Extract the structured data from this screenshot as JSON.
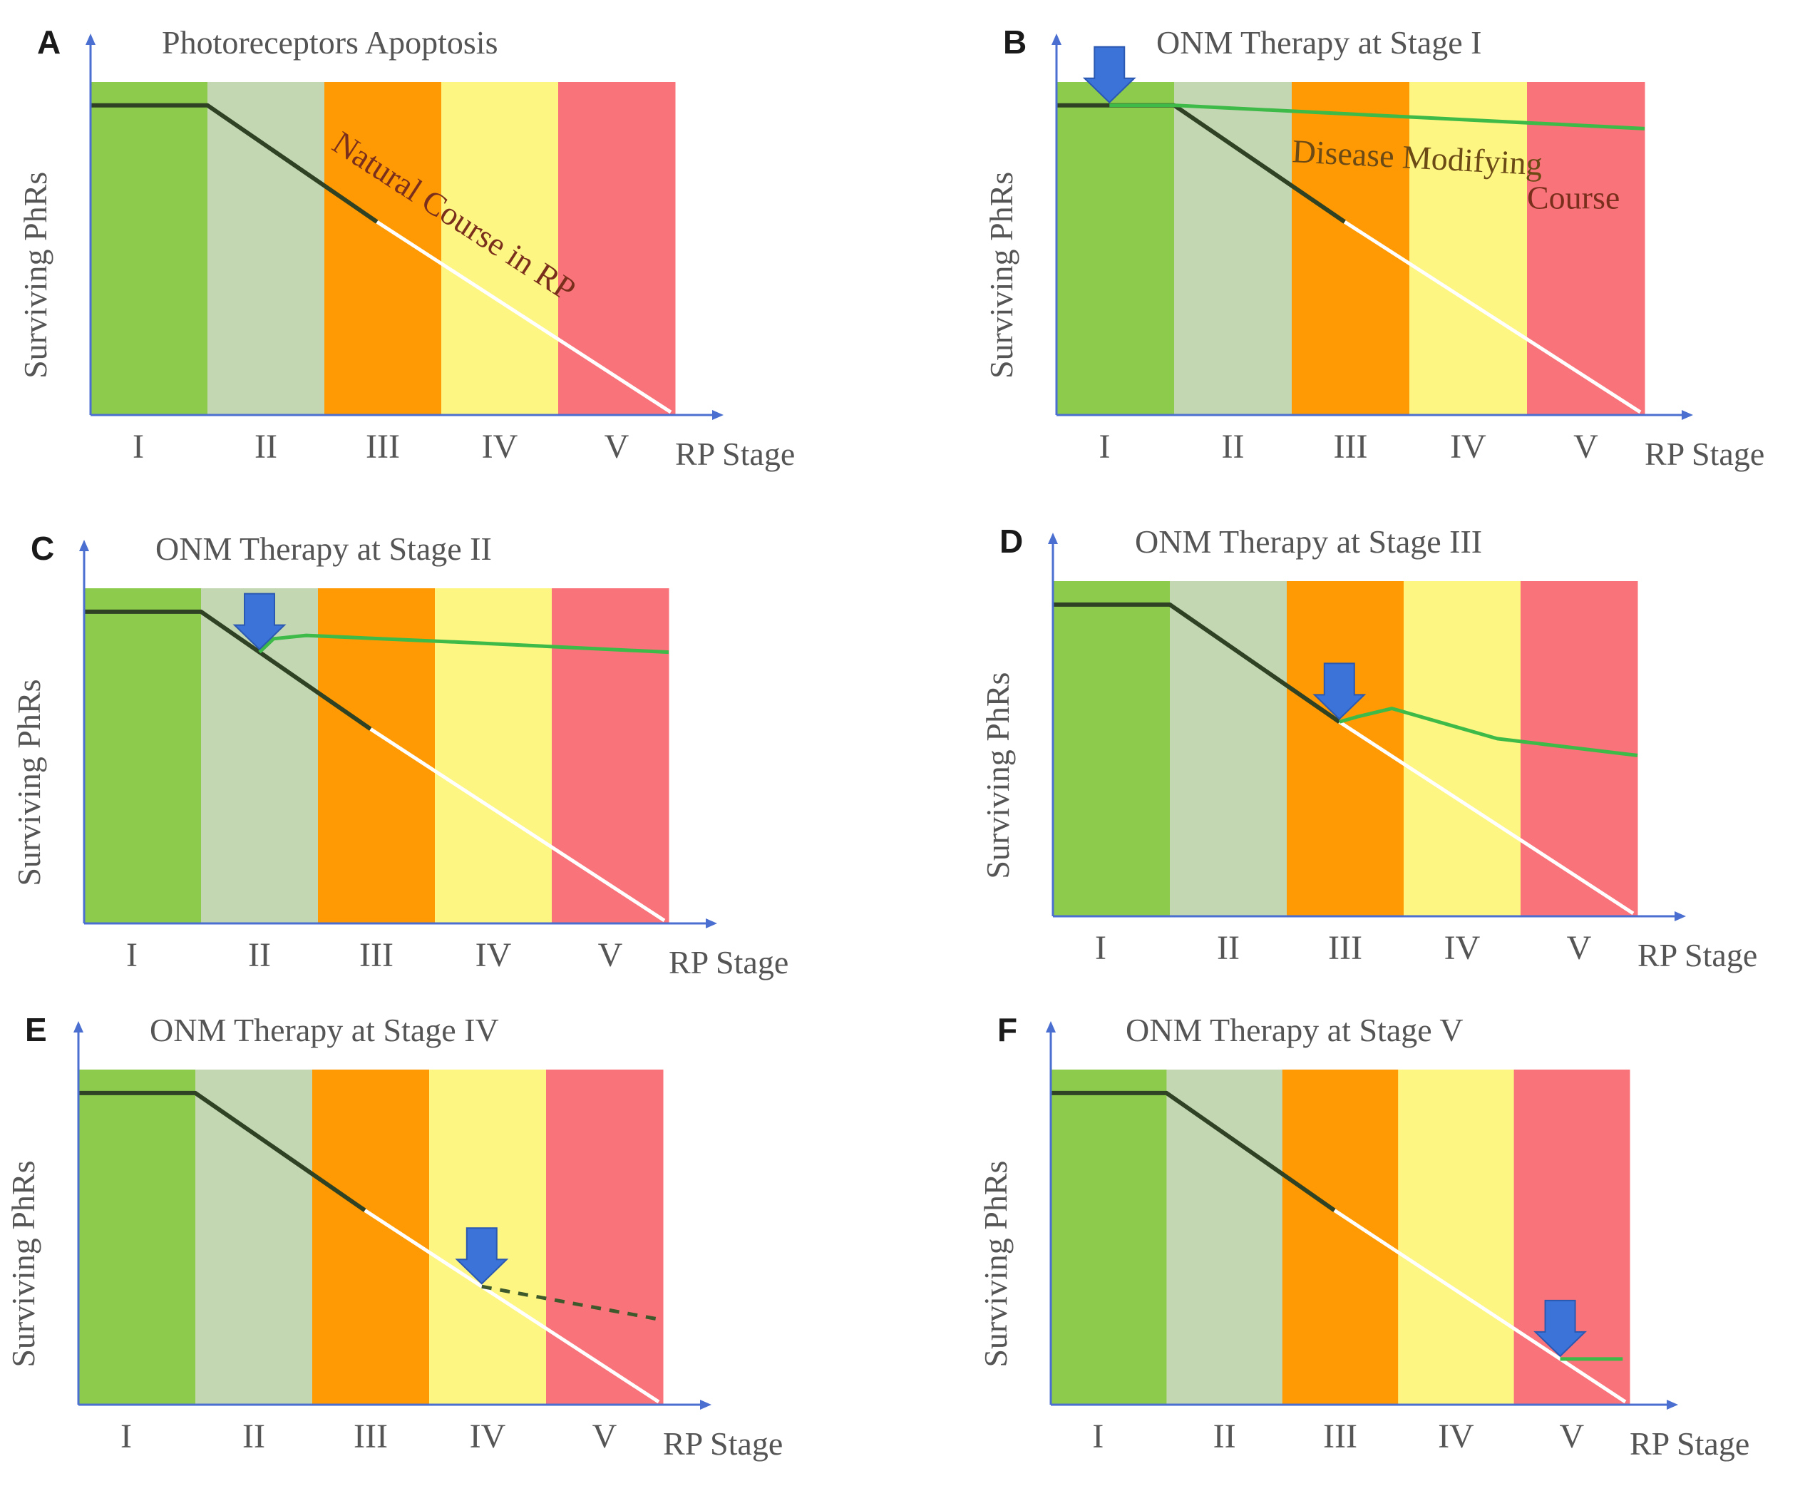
{
  "figure": {
    "colors": {
      "stage_I": "#8dcb4c",
      "stage_II": "#c4d7b3",
      "stage_III": "#ff9a05",
      "stage_IV": "#fdf683",
      "stage_V": "#f8737a",
      "natural_course_line": "#2f4224",
      "white_extension": "#ffffff",
      "therapy_line": "#3dba48",
      "arrow": "#3b73d8",
      "axis": "#4a6fd0",
      "text": "#555555",
      "letter": "#1a1a1a"
    },
    "icons": {
      "therapy_arrow": "down-arrow-icon"
    },
    "panels": [
      {
        "letter": "A",
        "title": "Photoreceptors Apoptosis",
        "ylabel": "Surviving PhRs",
        "xlabel": "RP Stage",
        "stages": [
          "I",
          "II",
          "III",
          "IV",
          "V"
        ],
        "therapy_stage": null,
        "therapy_style": "none",
        "annotations": [
          {
            "text": "Natural Course in RP",
            "color": "#7a2f1c"
          }
        ]
      },
      {
        "letter": "B",
        "title": "ONM Therapy  at Stage I",
        "ylabel": "Surviving PhRs",
        "xlabel": "RP Stage",
        "stages": [
          "I",
          "II",
          "III",
          "IV",
          "V"
        ],
        "therapy_stage": "I",
        "therapy_style": "solid",
        "annotations": [
          {
            "text": "Disease Modifying",
            "color": "#6b4a16"
          },
          {
            "text": "Course",
            "color": "#7a2f1c"
          }
        ]
      },
      {
        "letter": "C",
        "title": "ONM Therapy  at Stage II",
        "ylabel": "Surviving PhRs",
        "xlabel": "RP Stage",
        "stages": [
          "I",
          "II",
          "III",
          "IV",
          "V"
        ],
        "therapy_stage": "II",
        "therapy_style": "solid",
        "annotations": []
      },
      {
        "letter": "D",
        "title": "ONM Therapy at Stage III",
        "ylabel": "Surviving PhRs",
        "xlabel": "RP Stage",
        "stages": [
          "I",
          "II",
          "III",
          "IV",
          "V"
        ],
        "therapy_stage": "III",
        "therapy_style": "solid",
        "annotations": []
      },
      {
        "letter": "E",
        "title": "ONM Therapy at Stage IV",
        "ylabel": "Surviving PhRs",
        "xlabel": "RP Stage",
        "stages": [
          "I",
          "II",
          "III",
          "IV",
          "V"
        ],
        "therapy_stage": "IV",
        "therapy_style": "dashed",
        "annotations": []
      },
      {
        "letter": "F",
        "title": "ONM Therapy at Stage V",
        "ylabel": "Surviving PhRs",
        "xlabel": "RP Stage",
        "stages": [
          "I",
          "II",
          "III",
          "IV",
          "V"
        ],
        "therapy_stage": "V",
        "therapy_style": "solid",
        "annotations": []
      }
    ]
  }
}
